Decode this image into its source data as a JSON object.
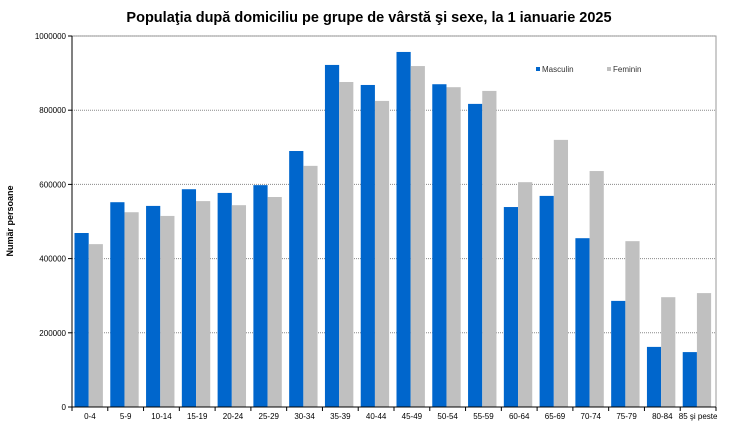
{
  "chart_data": {
    "type": "bar",
    "title": "Populaţia după domiciliu pe grupe de vârstă şi sexe, la 1 ianuarie 2025",
    "xlabel": "",
    "ylabel": "Numär persoane",
    "ylim": [
      0,
      1000000
    ],
    "yticks": [
      0,
      200000,
      400000,
      600000,
      800000,
      1000000
    ],
    "grid": true,
    "legend_position": "top-right",
    "categories": [
      "0-4",
      "5-9",
      "10-14",
      "15-19",
      "20-24",
      "25-29",
      "30-34",
      "35-39",
      "40-44",
      "45-49",
      "50-54",
      "55-59",
      "60-64",
      "65-69",
      "70-74",
      "75-79",
      "80-84",
      "85 şi peste"
    ],
    "series": [
      {
        "name": "Masculin",
        "color": "#0066cc",
        "values": [
          469000,
          552000,
          542000,
          587000,
          577000,
          598000,
          690000,
          922000,
          868000,
          957000,
          870000,
          817000,
          539000,
          569000,
          455000,
          286000,
          162000,
          148000
        ]
      },
      {
        "name": "Feminin",
        "color": "#c0c0c0",
        "values": [
          439000,
          525000,
          515000,
          555000,
          544000,
          566000,
          650000,
          876000,
          825000,
          919000,
          862000,
          852000,
          606000,
          720000,
          636000,
          447000,
          296000,
          307000
        ]
      }
    ]
  }
}
